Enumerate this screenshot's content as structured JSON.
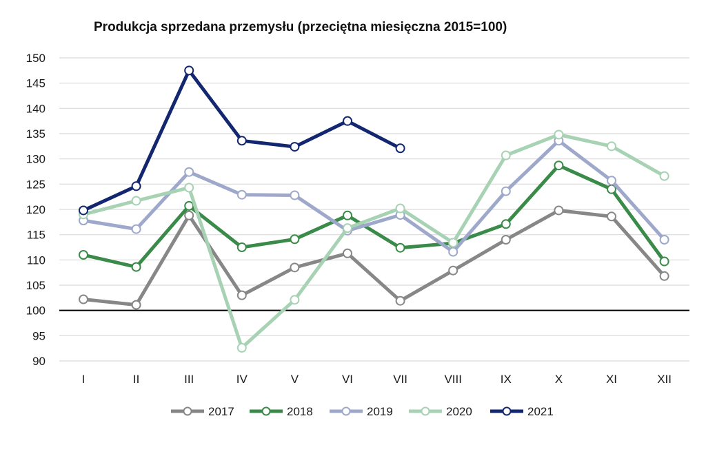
{
  "chart_data": {
    "type": "line",
    "title": "Produkcja sprzedana przemysłu (przeciętna miesięczna 2015=100)",
    "xlabel": "",
    "ylabel": "",
    "categories": [
      "I",
      "II",
      "III",
      "IV",
      "V",
      "VI",
      "VII",
      "VIII",
      "IX",
      "X",
      "XI",
      "XII"
    ],
    "ylim": [
      90,
      150
    ],
    "yticks": [
      "150",
      "145",
      "140",
      "135",
      "130",
      "125",
      "120",
      "115",
      "110",
      "105",
      "100",
      "95",
      "90"
    ],
    "reference_line": 100,
    "grid": true,
    "legend_position": "bottom",
    "series": [
      {
        "name": "2017",
        "color": "#878787",
        "values": [
          102.2,
          101.1,
          118.8,
          103.0,
          108.5,
          111.3,
          101.9,
          107.9,
          114.0,
          119.8,
          118.6,
          106.8
        ]
      },
      {
        "name": "2018",
        "color": "#3a8a49",
        "values": [
          111.0,
          108.6,
          120.7,
          112.5,
          114.1,
          118.8,
          112.4,
          113.3,
          117.1,
          128.7,
          124.0,
          109.7
        ]
      },
      {
        "name": "2019",
        "color": "#9ea8ca",
        "values": [
          117.8,
          116.1,
          127.4,
          122.9,
          122.8,
          115.8,
          118.9,
          111.6,
          123.6,
          133.6,
          125.7,
          114.0
        ]
      },
      {
        "name": "2020",
        "color": "#a7d2b4",
        "values": [
          119.0,
          121.7,
          124.3,
          92.6,
          102.1,
          116.3,
          120.2,
          113.4,
          130.7,
          134.8,
          132.5,
          126.6
        ]
      },
      {
        "name": "2021",
        "color": "#132770",
        "values": [
          119.8,
          124.6,
          147.5,
          133.6,
          132.4,
          137.5,
          132.1,
          null,
          null,
          null,
          null,
          null
        ]
      }
    ]
  }
}
